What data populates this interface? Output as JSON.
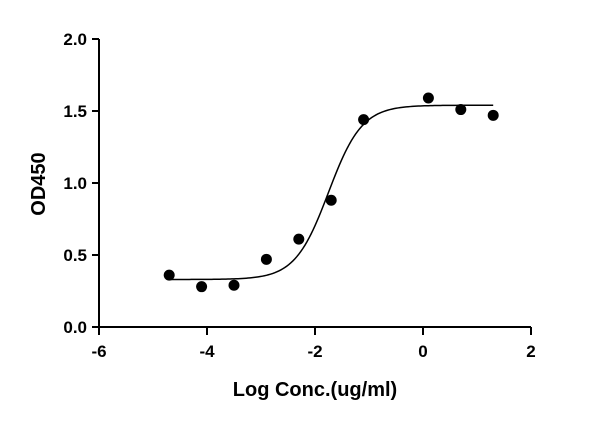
{
  "chart_data": {
    "type": "scatter",
    "title": "",
    "xlabel": "Log Conc.(ug/ml)",
    "ylabel": "OD450",
    "xlim": [
      -6,
      2
    ],
    "ylim": [
      0,
      2.0
    ],
    "x_ticks": [
      -6,
      -4,
      -2,
      0,
      2
    ],
    "x_tick_labels": [
      "-6",
      "-4",
      "-2",
      "0",
      "2"
    ],
    "y_ticks": [
      0,
      0.5,
      1.0,
      1.5,
      2.0
    ],
    "y_tick_labels": [
      "0.0",
      "0.5",
      "1.0",
      "1.5",
      "2.0"
    ],
    "grid": false,
    "series": [
      {
        "x": [
          -4.7,
          -4.1,
          -3.5,
          -2.9,
          -2.3,
          -1.7,
          -1.1,
          0.1,
          0.7,
          1.3
        ],
        "y": [
          0.36,
          0.28,
          0.29,
          0.47,
          0.61,
          0.88,
          1.44,
          1.59,
          1.51,
          1.47
        ]
      }
    ],
    "fit": {
      "model": "four-parameter logistic",
      "bottom": 0.33,
      "top": 1.54,
      "log_ec50": -1.75,
      "hill_slope": 1.4
    },
    "colors": {
      "points": "#000000",
      "curve": "#000000",
      "axes": "#000000"
    }
  }
}
